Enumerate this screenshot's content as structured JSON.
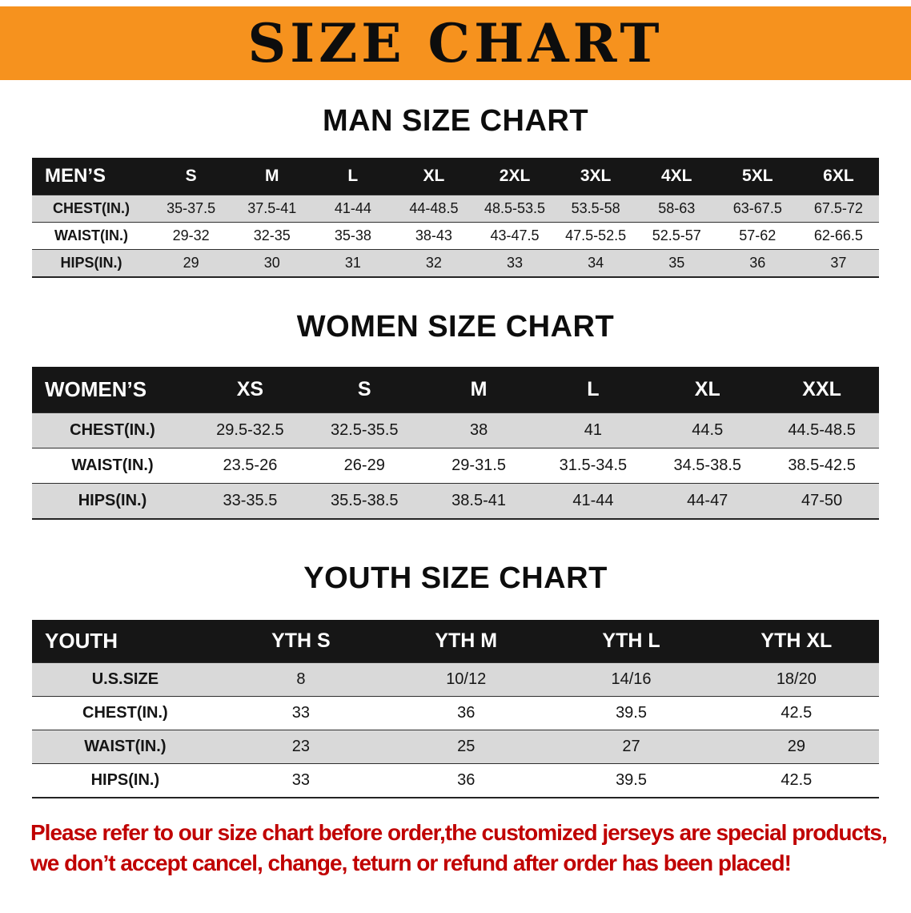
{
  "banner": {
    "title": "SIZE CHART"
  },
  "sections": [
    {
      "heading": "MAN SIZE CHART",
      "table": {
        "header": [
          "MEN’S",
          "S",
          "M",
          "L",
          "XL",
          "2XL",
          "3XL",
          "4XL",
          "5XL",
          "6XL"
        ],
        "rows": [
          [
            "CHEST(IN.)",
            "35-37.5",
            "37.5-41",
            "41-44",
            "44-48.5",
            "48.5-53.5",
            "53.5-58",
            "58-63",
            "63-67.5",
            "67.5-72"
          ],
          [
            "WAIST(IN.)",
            "29-32",
            "32-35",
            "35-38",
            "38-43",
            "43-47.5",
            "47.5-52.5",
            "52.5-57",
            "57-62",
            "62-66.5"
          ],
          [
            "HIPS(IN.)",
            "29",
            "30",
            "31",
            "32",
            "33",
            "34",
            "35",
            "36",
            "37"
          ]
        ]
      }
    },
    {
      "heading": "WOMEN SIZE CHART",
      "table": {
        "header": [
          "WOMEN’S",
          "XS",
          "S",
          "M",
          "L",
          "XL",
          "XXL"
        ],
        "rows": [
          [
            "CHEST(IN.)",
            "29.5-32.5",
            "32.5-35.5",
            "38",
            "41",
            "44.5",
            "44.5-48.5"
          ],
          [
            "WAIST(IN.)",
            "23.5-26",
            "26-29",
            "29-31.5",
            "31.5-34.5",
            "34.5-38.5",
            "38.5-42.5"
          ],
          [
            "HIPS(IN.)",
            "33-35.5",
            "35.5-38.5",
            "38.5-41",
            "41-44",
            "44-47",
            "47-50"
          ]
        ]
      }
    },
    {
      "heading": "YOUTH SIZE CHART",
      "table": {
        "header": [
          "YOUTH",
          "YTH S",
          "YTH M",
          "YTH L",
          "YTH XL"
        ],
        "rows": [
          [
            "U.S.SIZE",
            "8",
            "10/12",
            "14/16",
            "18/20"
          ],
          [
            "CHEST(IN.)",
            "33",
            "36",
            "39.5",
            "42.5"
          ],
          [
            "WAIST(IN.)",
            "23",
            "25",
            "27",
            "29"
          ],
          [
            "HIPS(IN.)",
            "33",
            "36",
            "39.5",
            "42.5"
          ]
        ]
      }
    }
  ],
  "footer": {
    "line1": "Please refer to our size chart before order,the customized jerseys are special products,",
    "line2": "we don’t accept cancel, change, teturn or refund after order has been placed!"
  },
  "colors": {
    "banner_bg": "#F6921E",
    "table_header_bg": "#161616",
    "row_shade": "#D9D9D9",
    "notice_text": "#C00000"
  }
}
